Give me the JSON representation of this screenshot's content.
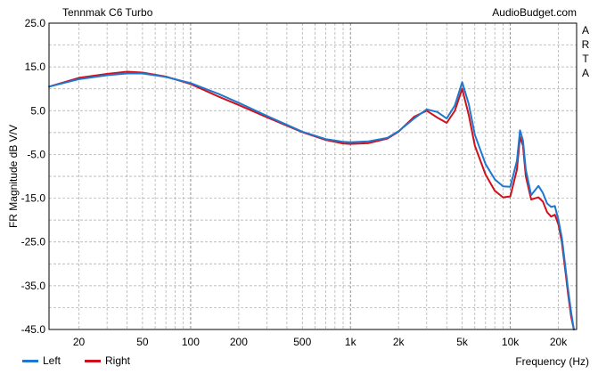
{
  "header": {
    "title": "Tennmak C6 Turbo",
    "site": "AudioBudget.com"
  },
  "side_label": "A\nR\nT\nA",
  "colors": {
    "left": "#1f77d0",
    "right": "#d0111b",
    "grid": "#a8a8a8",
    "frame": "#000000"
  },
  "chart_data": {
    "type": "line",
    "title": "Tennmak C6 Turbo",
    "xlabel": "Frequency (Hz)",
    "ylabel": "FR Magnitude dB V/V",
    "xscale": "log",
    "xlim": [
      13,
      26000
    ],
    "ylim": [
      -45,
      25
    ],
    "grid": true,
    "legend_position": "bottom-left",
    "y_ticks": [
      25,
      15,
      5,
      -5,
      -15,
      -25,
      -35,
      -45
    ],
    "y_tick_labels": [
      "25.0",
      "15.0",
      "5.0",
      "-5.0",
      "-15.0",
      "-25.0",
      "-35.0",
      "-45.0"
    ],
    "x_ticks": [
      20,
      50,
      100,
      200,
      500,
      1000,
      2000,
      5000,
      10000,
      20000
    ],
    "x_tick_labels": [
      "20",
      "50",
      "100",
      "200",
      "500",
      "1k",
      "2k",
      "5k",
      "10k",
      "20k"
    ],
    "series": [
      {
        "name": "Left",
        "color": "#1f77d0",
        "x": [
          13,
          20,
          30,
          40,
          50,
          70,
          100,
          150,
          200,
          300,
          500,
          700,
          900,
          1000,
          1300,
          1700,
          2000,
          2500,
          3000,
          3500,
          4000,
          4500,
          5000,
          5500,
          6000,
          7000,
          8000,
          9000,
          10000,
          11000,
          11500,
          12000,
          12500,
          13500,
          15000,
          16000,
          17000,
          18000,
          19000,
          20000,
          21000,
          22000,
          23000,
          24000,
          25000
        ],
        "y": [
          10.5,
          12.2,
          13.1,
          13.5,
          13.5,
          12.7,
          11.3,
          8.8,
          6.8,
          3.8,
          0.2,
          -1.5,
          -2.1,
          -2.2,
          -2.0,
          -1.2,
          0.3,
          3.2,
          5.3,
          4.7,
          3.2,
          6.2,
          11.5,
          6.5,
          -0.5,
          -7.2,
          -10.7,
          -12.3,
          -12.4,
          -6.5,
          0.5,
          -1.8,
          -8.5,
          -14.3,
          -12.2,
          -13.8,
          -16.2,
          -17.0,
          -16.8,
          -20.0,
          -24.0,
          -30.0,
          -36.0,
          -41.0,
          -45.0
        ]
      },
      {
        "name": "Right",
        "color": "#d0111b",
        "x": [
          13,
          20,
          30,
          40,
          50,
          70,
          100,
          150,
          200,
          300,
          500,
          700,
          900,
          1000,
          1300,
          1700,
          2000,
          2500,
          3000,
          3500,
          4000,
          4500,
          5000,
          5500,
          6000,
          7000,
          8000,
          9000,
          10000,
          11000,
          11500,
          12000,
          12500,
          13500,
          15000,
          16000,
          17000,
          18000,
          19000,
          20000,
          21000,
          22000,
          23000,
          24000,
          25000
        ],
        "y": [
          10.5,
          12.5,
          13.4,
          13.9,
          13.7,
          12.8,
          11.1,
          8.2,
          6.3,
          3.5,
          0.1,
          -1.7,
          -2.5,
          -2.6,
          -2.4,
          -1.4,
          0.2,
          3.6,
          5.0,
          3.4,
          2.2,
          5.0,
          10.0,
          4.0,
          -3.0,
          -9.6,
          -13.3,
          -14.8,
          -14.6,
          -8.5,
          -1.0,
          -3.0,
          -10.0,
          -15.3,
          -14.8,
          -15.8,
          -18.2,
          -19.2,
          -18.8,
          -21.0,
          -25.0,
          -31.0,
          -37.0,
          -42.0,
          -45.0
        ]
      }
    ]
  }
}
